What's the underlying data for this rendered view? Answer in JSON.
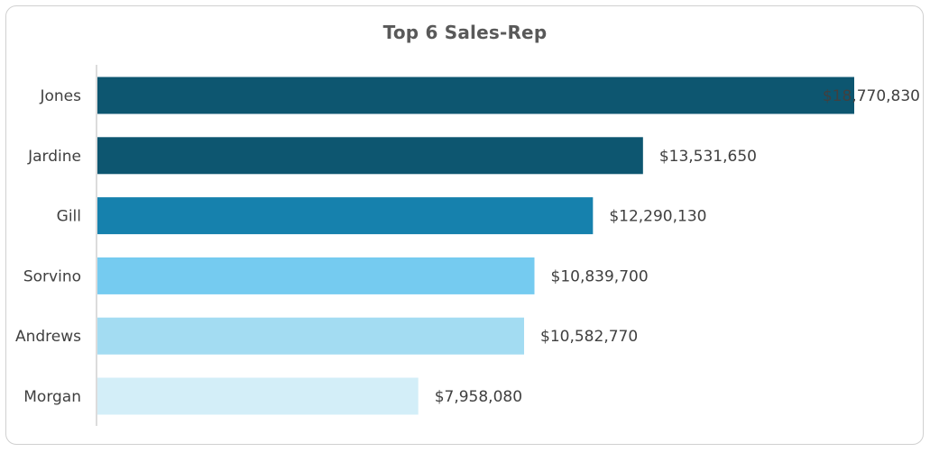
{
  "chart_data": {
    "type": "bar",
    "orientation": "horizontal",
    "title": "Top 6 Sales-Rep",
    "xlabel": "",
    "ylabel": "",
    "categories": [
      "Jones",
      "Jardine",
      "Gill",
      "Sorvino",
      "Andrews",
      "Morgan"
    ],
    "values": [
      18770830,
      13531650,
      12290130,
      10839700,
      10582770,
      7958080
    ],
    "value_labels": [
      "$18,770,830",
      "$13,531,650",
      "$12,290,130",
      "$10,839,700",
      "$10,582,770",
      "$7,958,080"
    ],
    "bar_colors": [
      "#0d5670",
      "#0d5670",
      "#1681ad",
      "#75cbf0",
      "#a3dcf2",
      "#d3eef8"
    ],
    "xlim": [
      0,
      18770830
    ],
    "grid": false,
    "legend": "none"
  },
  "colors": {
    "axis": "#d0d0d0",
    "text": "#404040",
    "title": "#595959"
  }
}
